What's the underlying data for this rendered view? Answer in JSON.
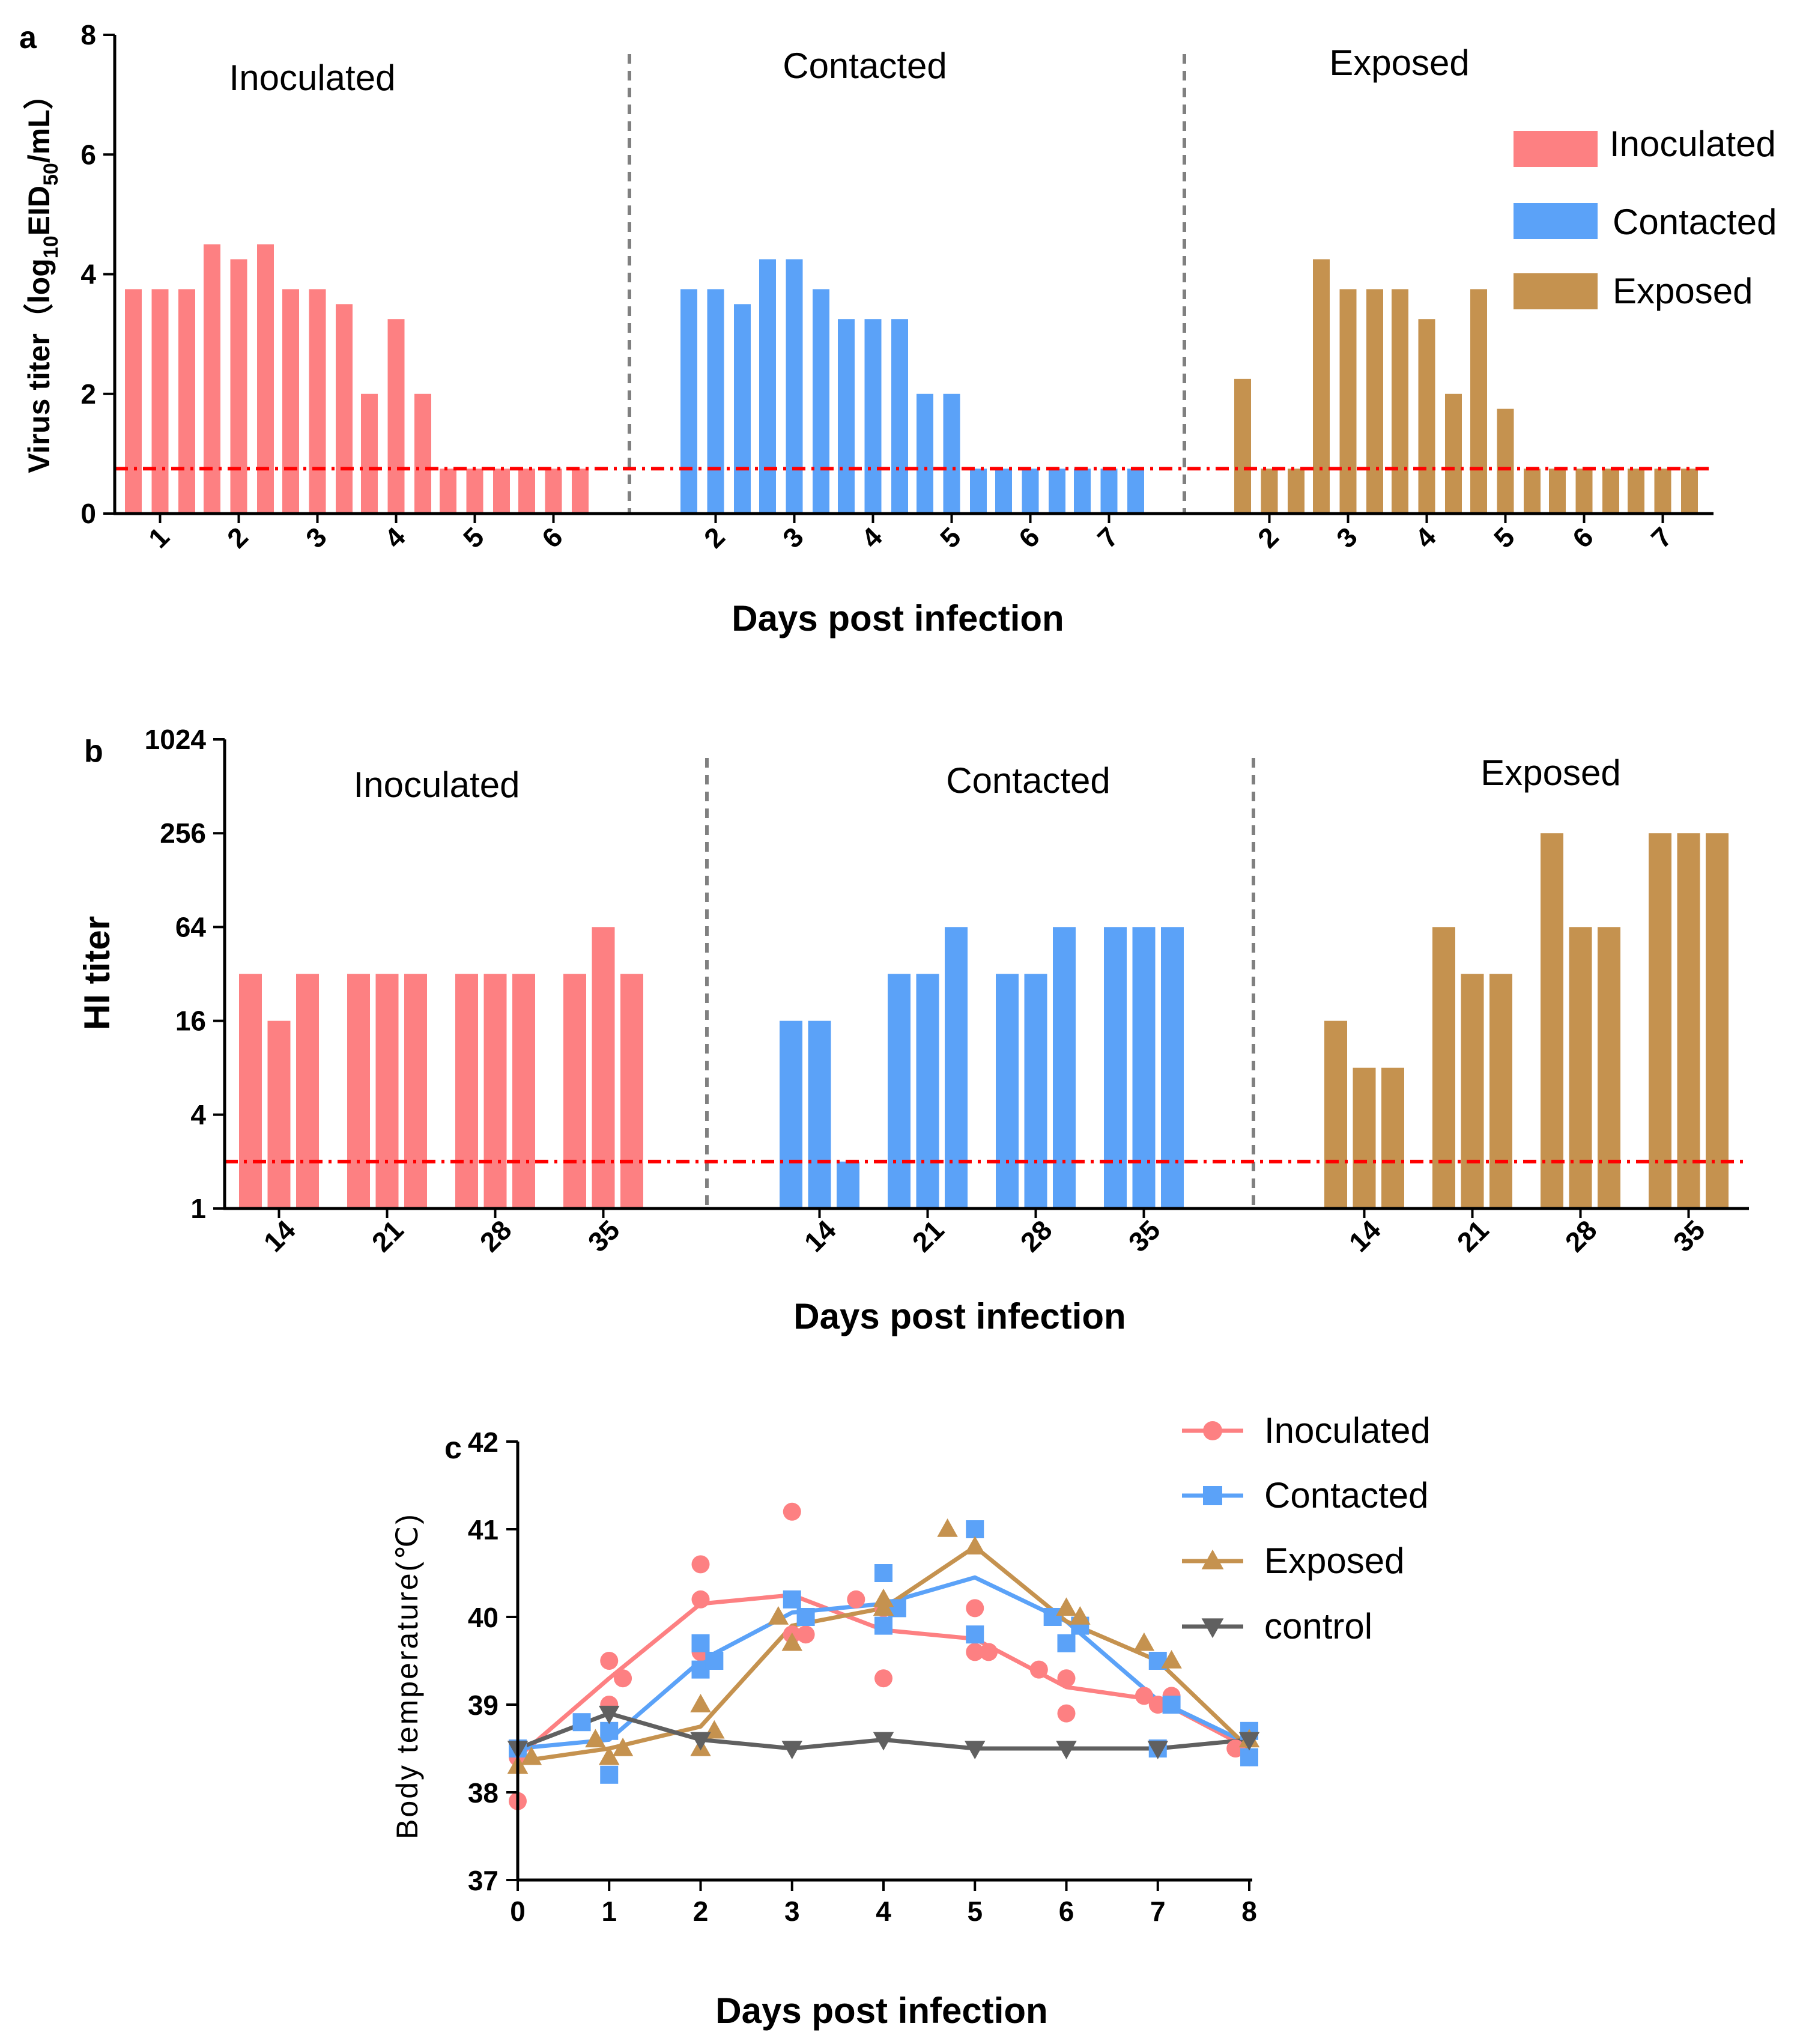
{
  "colors": {
    "inoculated": "#fd8082",
    "contacted": "#5ba2f8",
    "exposed": "#c5924f",
    "control": "#606060",
    "threshold": "#ff0000",
    "divider": "#808080"
  },
  "chart_data": [
    {
      "panel": "a",
      "type": "bar",
      "xlabel": "Days post infection",
      "ylabel_main": "Virus titer（log",
      "ylabel_sub1": "10",
      "ylabel_mid": "EID",
      "ylabel_sub2": "50",
      "ylabel_end": "/mL）",
      "ylim": [
        0,
        8
      ],
      "yticks": [
        "0",
        "2",
        "4",
        "6",
        "8"
      ],
      "threshold": 0.75,
      "legend": [
        "Inoculated",
        "Contacted",
        "Exposed"
      ],
      "groups": [
        {
          "name": "Inoculated",
          "categories": [
            "1",
            "2",
            "3",
            "4",
            "5",
            "6"
          ],
          "values": [
            [
              3.75,
              3.75,
              3.75
            ],
            [
              4.5,
              4.25,
              4.5
            ],
            [
              3.75,
              3.75,
              3.5
            ],
            [
              2.0,
              3.25,
              2.0
            ],
            [
              0.75,
              0.75,
              0.75
            ],
            [
              0.75,
              0.75,
              0.75
            ]
          ]
        },
        {
          "name": "Contacted",
          "categories": [
            "2",
            "3",
            "4",
            "5",
            "6",
            "7"
          ],
          "values": [
            [
              3.75,
              3.75,
              3.5
            ],
            [
              4.25,
              4.25,
              3.75
            ],
            [
              3.25,
              3.25,
              3.25
            ],
            [
              2.0,
              2.0,
              0.75
            ],
            [
              0.75,
              0.75,
              0.75
            ],
            [
              0.75,
              0.75,
              0.75
            ]
          ]
        },
        {
          "name": "Exposed",
          "categories": [
            "2",
            "3",
            "4",
            "5",
            "6",
            "7"
          ],
          "values": [
            [
              2.25,
              0.75,
              0.75
            ],
            [
              4.25,
              3.75,
              3.75
            ],
            [
              3.75,
              3.25,
              2.0
            ],
            [
              3.75,
              1.75,
              0.75
            ],
            [
              0.75,
              0.75,
              0.75
            ],
            [
              0.75,
              0.75,
              0.75
            ]
          ]
        }
      ]
    },
    {
      "panel": "b",
      "type": "bar",
      "xlabel": "Days post infection",
      "ylabel": "HI titer",
      "yscale": "log2",
      "ylim": [
        1,
        1024
      ],
      "yticks": [
        "1",
        "4",
        "16",
        "64",
        "256",
        "1024"
      ],
      "threshold": 2,
      "groups": [
        {
          "name": "Inoculated",
          "categories": [
            "14",
            "21",
            "28",
            "35"
          ],
          "values": [
            [
              32,
              16,
              32
            ],
            [
              32,
              32,
              32
            ],
            [
              32,
              32,
              32
            ],
            [
              32,
              64,
              32
            ]
          ]
        },
        {
          "name": "Contacted",
          "categories": [
            "14",
            "21",
            "28",
            "35"
          ],
          "values": [
            [
              16,
              16,
              2
            ],
            [
              32,
              32,
              64
            ],
            [
              32,
              32,
              64
            ],
            [
              64,
              64,
              64
            ]
          ]
        },
        {
          "name": "Exposed",
          "categories": [
            "14",
            "21",
            "28",
            "35"
          ],
          "values": [
            [
              16,
              8,
              8
            ],
            [
              64,
              32,
              32
            ],
            [
              256,
              64,
              64
            ],
            [
              256,
              256,
              256
            ]
          ]
        }
      ]
    },
    {
      "panel": "c",
      "type": "scatter",
      "xlabel": "Days post infection",
      "ylabel": "Body temperature(℃)",
      "xlim": [
        0,
        8
      ],
      "ylim": [
        37,
        42
      ],
      "xticks": [
        "0",
        "1",
        "2",
        "3",
        "4",
        "5",
        "6",
        "7",
        "8"
      ],
      "yticks": [
        "37",
        "38",
        "39",
        "40",
        "41",
        "42"
      ],
      "legend": [
        "Inoculated",
        "Contacted",
        "Exposed",
        "control"
      ],
      "series": [
        {
          "name": "Inoculated",
          "marker": "circle",
          "mean_x": [
            0,
            1,
            2,
            3,
            4,
            5,
            6,
            7,
            8
          ],
          "mean_y": [
            38.4,
            39.3,
            40.15,
            40.25,
            39.85,
            39.75,
            39.2,
            39.05,
            38.5
          ],
          "points": [
            [
              0,
              37.9
            ],
            [
              0,
              38.4
            ],
            [
              1,
              39.0
            ],
            [
              1,
              39.5
            ],
            [
              1.15,
              39.3
            ],
            [
              2,
              39.6
            ],
            [
              2,
              40.2
            ],
            [
              2,
              40.6
            ],
            [
              3,
              41.2
            ],
            [
              3,
              39.8
            ],
            [
              3.15,
              39.8
            ],
            [
              3.7,
              40.2
            ],
            [
              4,
              39.3
            ],
            [
              4,
              40.1
            ],
            [
              5,
              40.1
            ],
            [
              5,
              39.6
            ],
            [
              5.15,
              39.6
            ],
            [
              5.7,
              39.4
            ],
            [
              6,
              38.9
            ],
            [
              6,
              39.3
            ],
            [
              6.85,
              39.1
            ],
            [
              7,
              39.0
            ],
            [
              7.15,
              39.1
            ],
            [
              7.85,
              38.5
            ],
            [
              8,
              38.4
            ]
          ]
        },
        {
          "name": "Contacted",
          "marker": "square",
          "mean_x": [
            0,
            1,
            2,
            3,
            4,
            5,
            6,
            7,
            8
          ],
          "mean_y": [
            38.5,
            38.6,
            39.5,
            40.05,
            40.15,
            40.45,
            39.95,
            39.05,
            38.55
          ],
          "points": [
            [
              0,
              38.5
            ],
            [
              0.7,
              38.8
            ],
            [
              1,
              38.2
            ],
            [
              1,
              38.7
            ],
            [
              2,
              39.4
            ],
            [
              2,
              39.7
            ],
            [
              2.15,
              39.5
            ],
            [
              3,
              40.2
            ],
            [
              3.15,
              40.0
            ],
            [
              4,
              39.9
            ],
            [
              4,
              40.5
            ],
            [
              4.15,
              40.1
            ],
            [
              5,
              41.0
            ],
            [
              5,
              39.8
            ],
            [
              5.85,
              40.0
            ],
            [
              6,
              39.7
            ],
            [
              6.15,
              39.9
            ],
            [
              7,
              38.5
            ],
            [
              7,
              39.5
            ],
            [
              7.15,
              39.0
            ],
            [
              8,
              38.7
            ],
            [
              8,
              38.4
            ]
          ]
        },
        {
          "name": "Exposed",
          "marker": "triangle",
          "mean_x": [
            0,
            1,
            2,
            3,
            4,
            5,
            6,
            7,
            8
          ],
          "mean_y": [
            38.35,
            38.5,
            38.75,
            39.9,
            40.1,
            40.8,
            39.95,
            39.5,
            38.5
          ],
          "points": [
            [
              0,
              38.3
            ],
            [
              0.15,
              38.4
            ],
            [
              0.85,
              38.6
            ],
            [
              1,
              38.4
            ],
            [
              1.15,
              38.5
            ],
            [
              2,
              38.5
            ],
            [
              2,
              39.0
            ],
            [
              2.15,
              38.7
            ],
            [
              2.85,
              40.0
            ],
            [
              3,
              39.7
            ],
            [
              4,
              40.1
            ],
            [
              4,
              40.2
            ],
            [
              4.7,
              41.0
            ],
            [
              5,
              40.8
            ],
            [
              6,
              40.1
            ],
            [
              6.15,
              40.0
            ],
            [
              6.85,
              39.7
            ],
            [
              7.15,
              39.5
            ],
            [
              8,
              38.6
            ]
          ]
        },
        {
          "name": "control",
          "marker": "triangle-down",
          "mean_x": [
            0,
            1,
            2,
            3,
            4,
            5,
            6,
            7,
            8
          ],
          "mean_y": [
            38.5,
            38.9,
            38.6,
            38.5,
            38.6,
            38.5,
            38.5,
            38.5,
            38.6
          ],
          "points": [
            [
              0,
              38.5
            ],
            [
              1,
              38.9
            ],
            [
              2,
              38.6
            ],
            [
              3,
              38.5
            ],
            [
              4,
              38.6
            ],
            [
              5,
              38.5
            ],
            [
              6,
              38.5
            ],
            [
              7,
              38.5
            ],
            [
              8,
              38.6
            ]
          ]
        }
      ]
    }
  ]
}
